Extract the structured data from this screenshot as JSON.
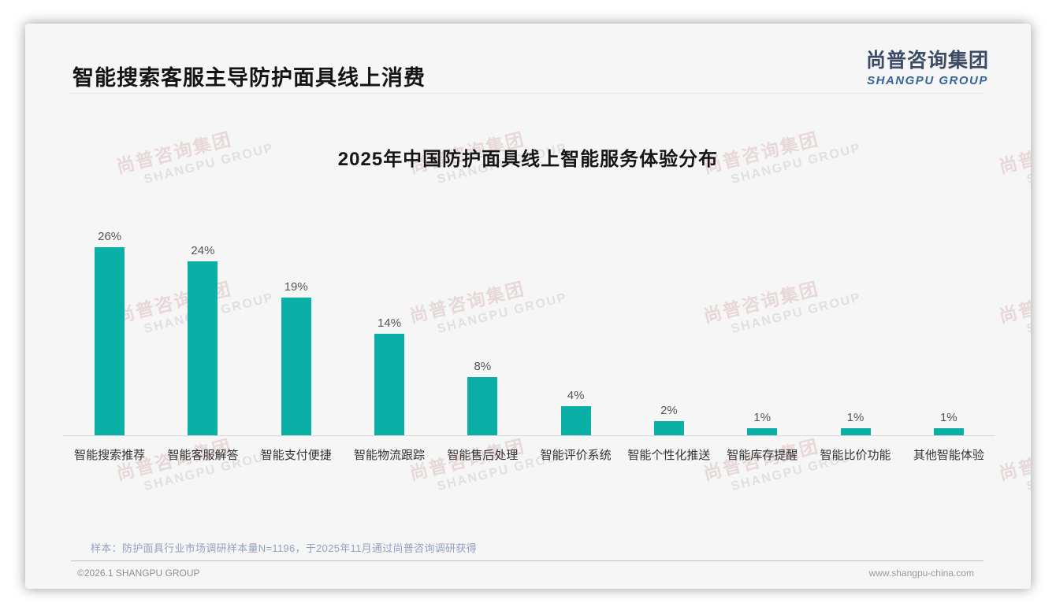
{
  "page": {
    "slide_title": "智能搜索客服主导防护面具线上消费",
    "logo": {
      "cn": "尚普咨询集团",
      "en": "SHANGPU GROUP"
    },
    "watermark": {
      "cn": "尚普咨询集团",
      "en": "SHANGPU GROUP"
    },
    "footer": {
      "sample_note": "样本：防护面具行业市场调研样本量N=1196，于2025年11月通过尚普咨询调研获得",
      "copyright": "©2026.1 SHANGPU GROUP",
      "website": "www.shangpu-china.com"
    },
    "colors": {
      "bar": "#0ab0a6",
      "logo_cn": "#3d4c66",
      "logo_en": "#36649f",
      "sample_note": "#93a2bc"
    }
  },
  "chart_data": {
    "type": "bar",
    "title": "2025年中国防护面具线上智能服务体验分布",
    "categories": [
      "智能搜索推荐",
      "智能客服解答",
      "智能支付便捷",
      "智能物流跟踪",
      "智能售后处理",
      "智能评价系统",
      "智能个性化推送",
      "智能库存提醒",
      "智能比价功能",
      "其他智能体验"
    ],
    "values": [
      26,
      24,
      19,
      14,
      8,
      4,
      2,
      1,
      1,
      1
    ],
    "value_labels": [
      "26%",
      "24%",
      "19%",
      "14%",
      "8%",
      "4%",
      "2%",
      "1%",
      "1%",
      "1%"
    ],
    "unit": "%",
    "ylim": [
      0,
      28
    ],
    "bar_color": "#0ab0a6",
    "grid": false,
    "legend": false,
    "xlabel": "",
    "ylabel": ""
  }
}
